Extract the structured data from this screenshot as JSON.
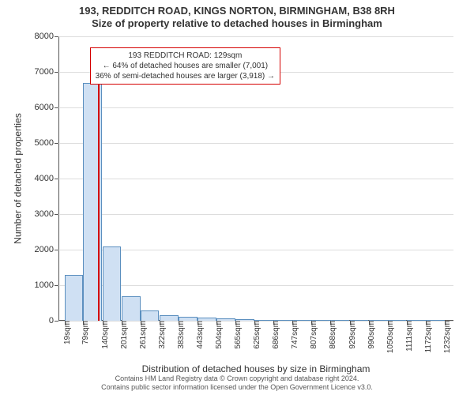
{
  "title": {
    "line1": "193, REDDITCH ROAD, KINGS NORTON, BIRMINGHAM, B38 8RH",
    "line2": "Size of property relative to detached houses in Birmingham",
    "fontsize": 13,
    "color": "#333333"
  },
  "chart": {
    "type": "histogram",
    "background_color": "#ffffff",
    "grid_color": "#dddddd",
    "axis_color": "#555555",
    "xlim": [
      0,
      1260
    ],
    "ylim": [
      0,
      8000
    ],
    "y_ticks": [
      0,
      1000,
      2000,
      3000,
      4000,
      5000,
      6000,
      7000,
      8000
    ],
    "y_tick_labels": [
      "0",
      "1000",
      "2000",
      "3000",
      "4000",
      "5000",
      "6000",
      "7000",
      "8000"
    ],
    "x_tick_positions": [
      19,
      79,
      140,
      201,
      261,
      322,
      383,
      443,
      504,
      565,
      625,
      686,
      747,
      807,
      868,
      929,
      990,
      1050,
      1111,
      1172,
      1232
    ],
    "x_tick_labels": [
      "19sqm",
      "79sqm",
      "140sqm",
      "201sqm",
      "261sqm",
      "322sqm",
      "383sqm",
      "443sqm",
      "504sqm",
      "565sqm",
      "625sqm",
      "686sqm",
      "747sqm",
      "807sqm",
      "868sqm",
      "929sqm",
      "990sqm",
      "1050sqm",
      "1111sqm",
      "1172sqm",
      "1232sqm"
    ],
    "tick_fontsize": 11,
    "xtick_fontsize": 10,
    "bar_color": "#cfe0f3",
    "bar_border_color": "#5b8fbf",
    "bar_width_units": 60,
    "bars": [
      {
        "x_start": 19,
        "value": 1300
      },
      {
        "x_start": 79,
        "value": 6700
      },
      {
        "x_start": 140,
        "value": 2100
      },
      {
        "x_start": 201,
        "value": 680
      },
      {
        "x_start": 261,
        "value": 280
      },
      {
        "x_start": 322,
        "value": 160
      },
      {
        "x_start": 383,
        "value": 120
      },
      {
        "x_start": 443,
        "value": 90
      },
      {
        "x_start": 504,
        "value": 60
      },
      {
        "x_start": 565,
        "value": 40
      },
      {
        "x_start": 625,
        "value": 20
      },
      {
        "x_start": 686,
        "value": 15
      },
      {
        "x_start": 747,
        "value": 10
      },
      {
        "x_start": 807,
        "value": 8
      },
      {
        "x_start": 868,
        "value": 6
      },
      {
        "x_start": 929,
        "value": 5
      },
      {
        "x_start": 990,
        "value": 4
      },
      {
        "x_start": 1050,
        "value": 3
      },
      {
        "x_start": 1111,
        "value": 2
      },
      {
        "x_start": 1172,
        "value": 2
      }
    ],
    "marker": {
      "x": 129,
      "height_value": 7400,
      "color": "#d40000"
    },
    "annotation": {
      "line1": "193 REDDITCH ROAD: 129sqm",
      "line2": "← 64% of detached houses are smaller (7,001)",
      "line3": "36% of semi-detached houses are larger (3,918) →",
      "border_color": "#d40000",
      "background_color": "#ffffff",
      "fontsize": 10,
      "x_left_units": 100,
      "y_top_value": 7700
    },
    "y_axis_label": "Number of detached properties",
    "x_axis_label": "Distribution of detached houses by size in Birmingham",
    "axis_label_fontsize": 12
  },
  "footer": {
    "line1": "Contains HM Land Registry data © Crown copyright and database right 2024.",
    "line2": "Contains public sector information licensed under the Open Government Licence v3.0.",
    "fontsize": 9,
    "color": "#555555"
  }
}
